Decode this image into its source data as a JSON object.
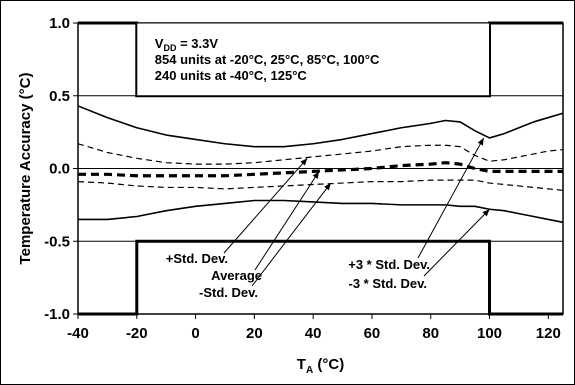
{
  "chart_data": {
    "type": "line",
    "xlabel": "T",
    "xlabel_sub": "A",
    "xlabel_unit": " (°C)",
    "ylabel": "Temperature Accuracy (°C)",
    "xlim": [
      -40,
      125
    ],
    "ylim": [
      -1.0,
      1.0
    ],
    "x_ticks": [
      -40,
      -20,
      0,
      20,
      40,
      60,
      80,
      100,
      120
    ],
    "x_tick_labels": [
      "-40",
      "-20",
      "0",
      "20",
      "40",
      "60",
      "80",
      "100",
      "120"
    ],
    "y_ticks": [
      1.0,
      0.5,
      0.0,
      -0.5,
      -1.0
    ],
    "y_tick_labels": [
      "1.0",
      "0.5",
      "0.0",
      "-0.5",
      "-1.0"
    ],
    "grid": "horizontal",
    "limits": {
      "upper": [
        [
          -40,
          1.0
        ],
        [
          -20,
          1.0
        ],
        [
          -20,
          0.5
        ],
        [
          100,
          0.5
        ],
        [
          100,
          1.0
        ],
        [
          125,
          1.0
        ]
      ],
      "lower": [
        [
          -40,
          -1.0
        ],
        [
          -20,
          -1.0
        ],
        [
          -20,
          -0.5
        ],
        [
          100,
          -0.5
        ],
        [
          100,
          -1.0
        ],
        [
          125,
          -1.0
        ]
      ]
    },
    "series": [
      {
        "name": "+3 * Std. Dev.",
        "style": "solid",
        "x": [
          -40,
          -30,
          -20,
          -10,
          0,
          10,
          20,
          30,
          40,
          50,
          60,
          70,
          80,
          85,
          90,
          95,
          100,
          105,
          110,
          115,
          120,
          125
        ],
        "y": [
          0.43,
          0.35,
          0.28,
          0.23,
          0.2,
          0.17,
          0.15,
          0.15,
          0.17,
          0.2,
          0.24,
          0.28,
          0.31,
          0.33,
          0.32,
          0.26,
          0.21,
          0.24,
          0.28,
          0.32,
          0.35,
          0.38
        ]
      },
      {
        "name": "+Std. Dev.",
        "style": "dashed",
        "x": [
          -40,
          -30,
          -20,
          -10,
          0,
          10,
          20,
          30,
          40,
          50,
          60,
          70,
          80,
          85,
          90,
          95,
          100,
          105,
          110,
          115,
          120,
          125
        ],
        "y": [
          0.17,
          0.11,
          0.07,
          0.04,
          0.03,
          0.03,
          0.04,
          0.06,
          0.08,
          0.1,
          0.12,
          0.15,
          0.16,
          0.16,
          0.15,
          0.09,
          0.05,
          0.06,
          0.08,
          0.1,
          0.12,
          0.13
        ]
      },
      {
        "name": "Average",
        "style": "thick-dashed",
        "x": [
          -40,
          -30,
          -20,
          -10,
          0,
          10,
          20,
          30,
          40,
          50,
          60,
          70,
          80,
          85,
          90,
          95,
          100,
          105,
          110,
          115,
          120,
          125
        ],
        "y": [
          -0.04,
          -0.04,
          -0.05,
          -0.05,
          -0.05,
          -0.05,
          -0.04,
          -0.03,
          -0.02,
          -0.01,
          0.0,
          0.02,
          0.03,
          0.04,
          0.03,
          0.0,
          -0.02,
          -0.02,
          -0.02,
          -0.02,
          -0.02,
          -0.02
        ]
      },
      {
        "name": "-Std. Dev.",
        "style": "dashed",
        "x": [
          -40,
          -30,
          -20,
          -10,
          0,
          10,
          20,
          30,
          40,
          50,
          60,
          70,
          80,
          85,
          90,
          95,
          100,
          105,
          110,
          115,
          120,
          125
        ],
        "y": [
          -0.09,
          -0.1,
          -0.12,
          -0.13,
          -0.13,
          -0.14,
          -0.13,
          -0.12,
          -0.11,
          -0.1,
          -0.09,
          -0.09,
          -0.08,
          -0.08,
          -0.08,
          -0.08,
          -0.1,
          -0.11,
          -0.12,
          -0.13,
          -0.14,
          -0.15
        ]
      },
      {
        "name": "-3 * Std. Dev.",
        "style": "solid",
        "x": [
          -40,
          -30,
          -20,
          -10,
          0,
          10,
          20,
          30,
          40,
          50,
          60,
          70,
          80,
          85,
          90,
          95,
          100,
          105,
          110,
          115,
          120,
          125
        ],
        "y": [
          -0.35,
          -0.35,
          -0.33,
          -0.29,
          -0.26,
          -0.24,
          -0.22,
          -0.22,
          -0.23,
          -0.24,
          -0.24,
          -0.25,
          -0.25,
          -0.25,
          -0.26,
          -0.26,
          -0.28,
          -0.29,
          -0.31,
          -0.33,
          -0.35,
          -0.37
        ]
      }
    ],
    "info_box": {
      "vdd_label": "V",
      "vdd_sub": "DD",
      "vdd_value": " = 3.3V",
      "line2": "854 units at -20°C, 25°C, 85°C, 100°C",
      "line3": "240 units at -40°C, 125°C"
    },
    "annotations": [
      {
        "text": "+Std. Dev.",
        "target": [
          38,
          0.07
        ]
      },
      {
        "text": "Average",
        "target": [
          42,
          -0.02
        ]
      },
      {
        "text": "-Std. Dev.",
        "target": [
          46,
          -0.1
        ]
      },
      {
        "text": "+3 * Std. Dev.",
        "target": [
          98,
          0.21
        ]
      },
      {
        "text": "-3 * Std. Dev.",
        "target": [
          100,
          -0.28
        ]
      }
    ]
  }
}
